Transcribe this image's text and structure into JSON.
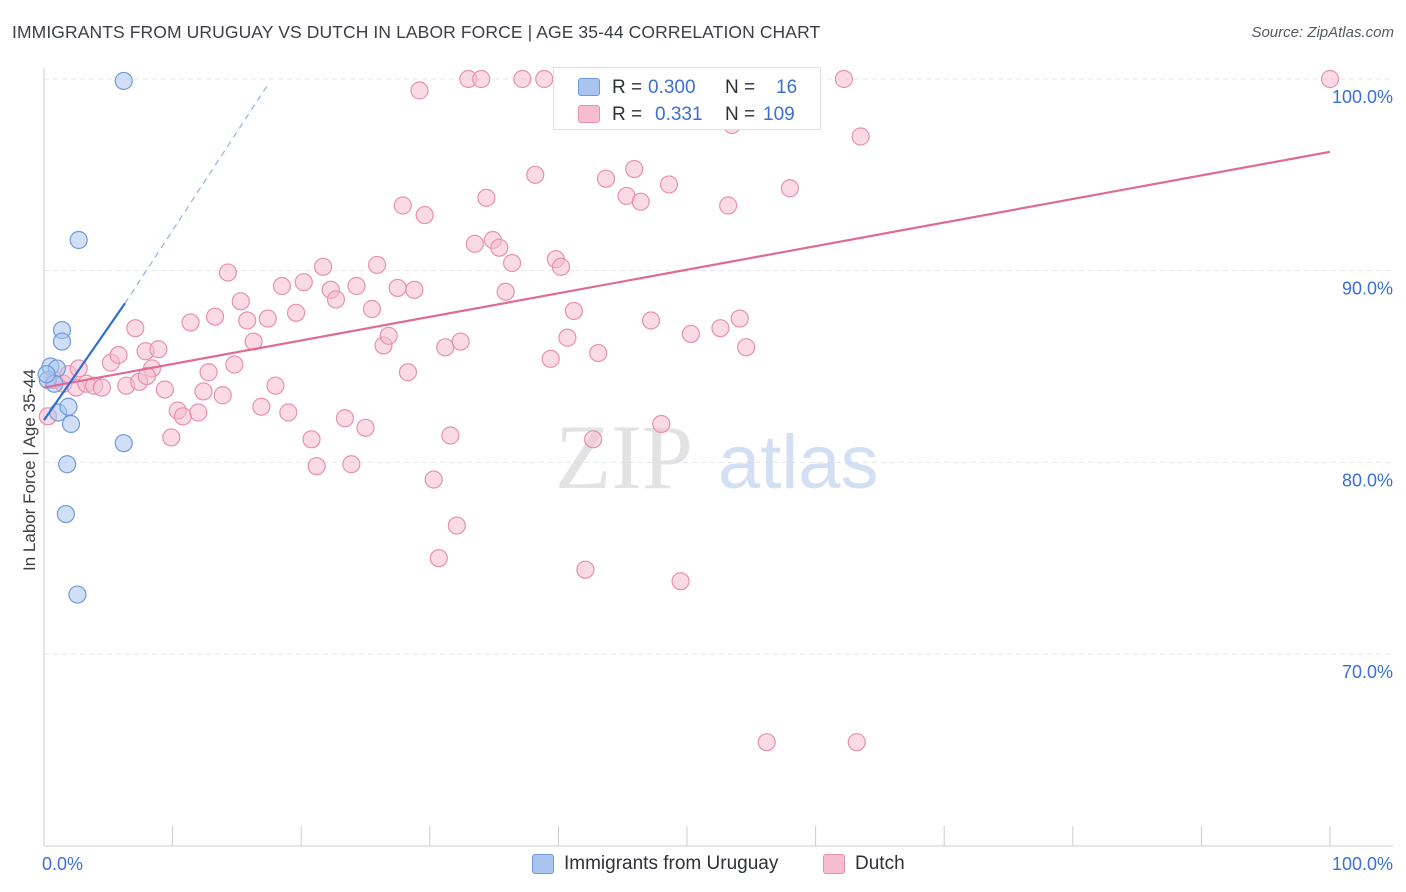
{
  "title": "IMMIGRANTS FROM URUGUAY VS DUTCH IN LABOR FORCE | AGE 35-44 CORRELATION CHART",
  "source": "Source: ZipAtlas.com",
  "watermark": {
    "zip": "ZIP",
    "atlas": "atlas"
  },
  "chart_data": {
    "type": "scatter",
    "ylabel": "In Labor Force | Age 35-44",
    "xlim": [
      0,
      100
    ],
    "ylim": [
      61,
      101.5
    ],
    "x_tick_labels": [
      {
        "value": 0,
        "label": "0.0%"
      },
      {
        "value": 100,
        "label": "100.0%"
      }
    ],
    "y_ticks": [
      {
        "value": 100,
        "label": "100.0%"
      },
      {
        "value": 90,
        "label": "90.0%"
      },
      {
        "value": 80,
        "label": "80.0%"
      },
      {
        "value": 70,
        "label": "70.0%"
      }
    ],
    "grid": true,
    "legend_position": "bottom",
    "stats": [
      {
        "r_label": "R =",
        "r_value": "0.300",
        "n_label": "N =",
        "n_value": "16"
      },
      {
        "r_label": "R =",
        "r_value": "0.331",
        "n_label": "N =",
        "n_value": "109"
      }
    ],
    "series": [
      {
        "name": "Immigrants from Uruguay",
        "fill": "#a9c4ef",
        "stroke": "#6f9ad9",
        "line_color": "#2f6fd0",
        "trend": {
          "x0": 0,
          "y0": 82.2,
          "x1": 6.3,
          "y1": 88.3,
          "dash_x1": 17.5,
          "dash_y1": 99.8
        },
        "points": [
          [
            6.2,
            99.9
          ],
          [
            2.7,
            91.6
          ],
          [
            1.4,
            86.9
          ],
          [
            1.4,
            86.3
          ],
          [
            0.5,
            85.0
          ],
          [
            1.0,
            84.9
          ],
          [
            0.3,
            84.3
          ],
          [
            0.8,
            84.1
          ],
          [
            1.1,
            82.6
          ],
          [
            1.9,
            82.9
          ],
          [
            2.1,
            82.0
          ],
          [
            6.2,
            81.0
          ],
          [
            1.8,
            79.9
          ],
          [
            1.7,
            77.3
          ],
          [
            2.6,
            73.1
          ],
          [
            0.2,
            84.6
          ]
        ]
      },
      {
        "name": "Dutch",
        "fill": "#f6bcd0",
        "stroke": "#e890ae",
        "line_color": "#e06a97",
        "trend": {
          "x0": 0,
          "y0": 83.9,
          "x1": 100,
          "y1": 96.2
        },
        "points": [
          [
            0.3,
            82.4
          ],
          [
            0.8,
            84.3
          ],
          [
            1.5,
            84.1
          ],
          [
            1.9,
            84.6
          ],
          [
            2.5,
            83.9
          ],
          [
            2.7,
            84.9
          ],
          [
            3.3,
            84.1
          ],
          [
            3.9,
            84.0
          ],
          [
            4.5,
            83.9
          ],
          [
            5.2,
            85.2
          ],
          [
            5.8,
            85.6
          ],
          [
            6.4,
            84.0
          ],
          [
            7.1,
            87.0
          ],
          [
            7.4,
            84.2
          ],
          [
            7.9,
            85.8
          ],
          [
            8.4,
            84.9
          ],
          [
            8.9,
            85.9
          ],
          [
            9.4,
            83.8
          ],
          [
            9.9,
            81.3
          ],
          [
            10.4,
            82.7
          ],
          [
            10.8,
            82.4
          ],
          [
            11.4,
            87.3
          ],
          [
            12.0,
            82.6
          ],
          [
            12.4,
            83.7
          ],
          [
            12.8,
            84.7
          ],
          [
            13.3,
            87.6
          ],
          [
            13.9,
            83.5
          ],
          [
            14.3,
            89.9
          ],
          [
            14.8,
            85.1
          ],
          [
            15.3,
            88.4
          ],
          [
            15.8,
            87.4
          ],
          [
            16.3,
            86.3
          ],
          [
            16.9,
            82.9
          ],
          [
            17.4,
            87.5
          ],
          [
            18.0,
            84.0
          ],
          [
            18.5,
            89.2
          ],
          [
            19.0,
            82.6
          ],
          [
            19.6,
            87.8
          ],
          [
            20.2,
            89.4
          ],
          [
            20.8,
            81.2
          ],
          [
            21.2,
            79.8
          ],
          [
            21.7,
            90.2
          ],
          [
            22.3,
            89.0
          ],
          [
            22.7,
            88.5
          ],
          [
            23.4,
            82.3
          ],
          [
            23.9,
            79.9
          ],
          [
            24.3,
            89.2
          ],
          [
            25.0,
            81.8
          ],
          [
            25.5,
            88.0
          ],
          [
            25.9,
            90.3
          ],
          [
            26.4,
            86.1
          ],
          [
            26.8,
            86.6
          ],
          [
            27.5,
            89.1
          ],
          [
            27.9,
            93.4
          ],
          [
            28.3,
            84.7
          ],
          [
            28.8,
            89.0
          ],
          [
            29.2,
            99.4
          ],
          [
            29.6,
            92.9
          ],
          [
            30.3,
            79.1
          ],
          [
            30.7,
            75.0
          ],
          [
            31.2,
            86.0
          ],
          [
            31.6,
            81.4
          ],
          [
            32.1,
            76.7
          ],
          [
            32.4,
            86.3
          ],
          [
            33.0,
            100.0
          ],
          [
            33.5,
            91.4
          ],
          [
            34.0,
            100.0
          ],
          [
            34.4,
            93.8
          ],
          [
            34.9,
            91.6
          ],
          [
            35.4,
            91.2
          ],
          [
            35.9,
            88.9
          ],
          [
            36.4,
            90.4
          ],
          [
            37.2,
            100.0
          ],
          [
            38.2,
            95.0
          ],
          [
            38.9,
            100.0
          ],
          [
            39.4,
            85.4
          ],
          [
            39.8,
            90.6
          ],
          [
            40.2,
            90.2
          ],
          [
            40.7,
            86.5
          ],
          [
            41.2,
            87.9
          ],
          [
            42.1,
            74.4
          ],
          [
            42.7,
            81.2
          ],
          [
            43.1,
            85.7
          ],
          [
            43.7,
            94.8
          ],
          [
            44.3,
            100.0
          ],
          [
            45.3,
            93.9
          ],
          [
            45.9,
            95.3
          ],
          [
            46.4,
            93.6
          ],
          [
            47.2,
            87.4
          ],
          [
            48.0,
            82.0
          ],
          [
            48.6,
            94.5
          ],
          [
            49.5,
            73.8
          ],
          [
            50.3,
            86.7
          ],
          [
            51.2,
            100.0
          ],
          [
            52.0,
            100.0
          ],
          [
            52.6,
            87.0
          ],
          [
            53.2,
            93.4
          ],
          [
            53.5,
            97.6
          ],
          [
            54.1,
            87.5
          ],
          [
            54.6,
            86.0
          ],
          [
            56.0,
            100.0
          ],
          [
            58.0,
            94.3
          ],
          [
            59.6,
            100.0
          ],
          [
            62.2,
            100.0
          ],
          [
            63.5,
            97.0
          ],
          [
            56.2,
            65.4
          ],
          [
            63.2,
            65.4
          ],
          [
            100.0,
            100.0
          ],
          [
            8.0,
            84.5
          ]
        ]
      }
    ]
  }
}
